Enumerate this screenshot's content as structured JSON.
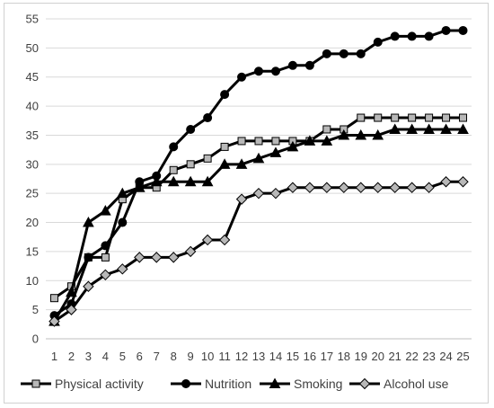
{
  "chart_data": {
    "type": "line",
    "categories": [
      "1",
      "2",
      "3",
      "4",
      "5",
      "6",
      "7",
      "8",
      "9",
      "10",
      "11",
      "12",
      "13",
      "14",
      "15",
      "16",
      "17",
      "18",
      "19",
      "20",
      "21",
      "22",
      "23",
      "24",
      "25"
    ],
    "ylim": [
      0,
      55
    ],
    "yticks": [
      "0",
      "5",
      "10",
      "15",
      "20",
      "25",
      "30",
      "35",
      "40",
      "45",
      "50",
      "55"
    ],
    "grid": "horizontal",
    "legend_position": "bottom",
    "series": [
      {
        "name": "Physical activity",
        "marker": "square",
        "line_color": "#000000",
        "marker_fill": "#b8b8b8",
        "values": [
          7,
          9,
          14,
          14,
          24,
          26,
          26,
          29,
          30,
          31,
          33,
          34,
          34,
          34,
          34,
          34,
          36,
          36,
          38,
          38,
          38,
          38,
          38,
          38,
          38
        ]
      },
      {
        "name": "Nutrition",
        "marker": "circle",
        "line_color": "#000000",
        "marker_fill": "#000000",
        "values": [
          4,
          6,
          14,
          16,
          20,
          27,
          28,
          33,
          36,
          38,
          42,
          45,
          46,
          46,
          47,
          47,
          49,
          49,
          49,
          51,
          52,
          52,
          52,
          53,
          53
        ]
      },
      {
        "name": "Smoking",
        "marker": "triangle",
        "line_color": "#000000",
        "marker_fill": "#000000",
        "values": [
          3,
          8,
          20,
          22,
          25,
          26,
          27,
          27,
          27,
          27,
          30,
          30,
          31,
          32,
          33,
          34,
          34,
          35,
          35,
          35,
          36,
          36,
          36,
          36,
          36
        ]
      },
      {
        "name": "Alcohol use",
        "marker": "diamond",
        "line_color": "#000000",
        "marker_fill": "#b8b8b8",
        "values": [
          3,
          5,
          9,
          11,
          12,
          14,
          14,
          14,
          15,
          17,
          17,
          24,
          25,
          25,
          26,
          26,
          26,
          26,
          26,
          26,
          26,
          26,
          26,
          27,
          27
        ]
      }
    ]
  }
}
